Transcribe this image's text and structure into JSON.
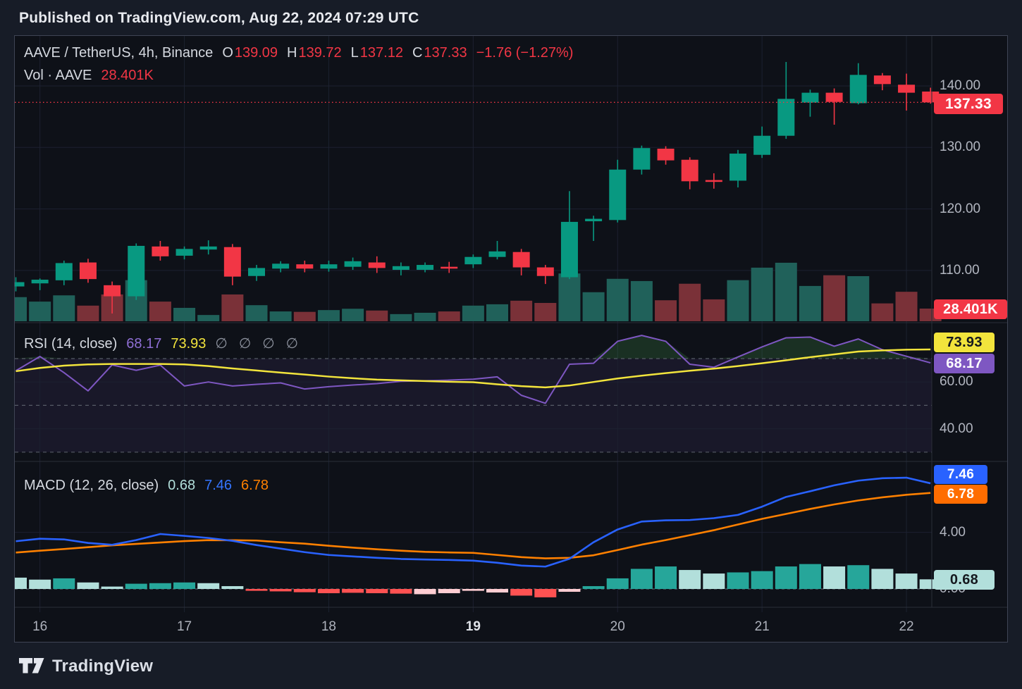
{
  "page": {
    "published": "Published on TradingView.com, Aug 22, 2024 07:29 UTC",
    "brand": "TradingView"
  },
  "main_legend": {
    "title": "AAVE / TetherUS, 4h, Binance",
    "o_label": "O",
    "o": "139.09",
    "h_label": "H",
    "h": "139.72",
    "l_label": "L",
    "l": "137.12",
    "c_label": "C",
    "c": "137.33",
    "change": "−1.76 (−1.27%)",
    "vol_label": "Vol · AAVE",
    "vol_value": "28.401K"
  },
  "rsi_legend": {
    "title": "RSI (14, close)",
    "rsi_value": "68.17",
    "ma_value": "73.93",
    "empty": [
      "∅",
      "∅",
      "∅",
      "∅"
    ]
  },
  "macd_legend": {
    "title": "MACD (12, 26, close)",
    "hist_value": "0.68",
    "macd_value": "7.46",
    "signal_value": "6.78"
  },
  "badges": {
    "price": "137.33",
    "volume": "28.401K",
    "rsi_ma": "73.93",
    "rsi": "68.17",
    "macd": "7.46",
    "signal": "6.78",
    "hist": "0.68"
  },
  "axes": {
    "price_ticks": [
      "140.00",
      "130.00",
      "120.00",
      "110.00"
    ],
    "rsi_ticks": [
      "60.00",
      "40.00"
    ],
    "macd_ticks": [
      "4.00",
      "0.00"
    ],
    "time_labels": [
      {
        "text": "16",
        "bold": false
      },
      {
        "text": "17",
        "bold": false
      },
      {
        "text": "18",
        "bold": false
      },
      {
        "text": "19",
        "bold": true
      },
      {
        "text": "20",
        "bold": false
      },
      {
        "text": "21",
        "bold": false
      },
      {
        "text": "22",
        "bold": false
      }
    ]
  },
  "colors": {
    "up": "#089981",
    "down": "#f23645",
    "vol_up": "#20615a",
    "vol_down": "#7a3138",
    "rsi_line": "#7e57c2",
    "rsi_ma_line": "#f2e43c",
    "rsi_band_fill": "rgba(126,87,194,0.10)",
    "rsi_ob_fill": "rgba(76,175,80,0.20)",
    "macd_line": "#2962ff",
    "signal_line": "#ff8000",
    "hist_teal": "#26a69a",
    "hist_pale": "#b2dfdb",
    "hist_red": "#ff5252",
    "hist_pink": "#ffcdd2",
    "grid": "#1c2130",
    "dashed": "#565b66",
    "divider": "#2a2e39",
    "price_line": "#f23645"
  },
  "chart_data": {
    "type": "candlestick",
    "title": "AAVE / TetherUS, 4h, Binance",
    "timeframe": "4h",
    "x_day_labels": [
      "16",
      "17",
      "18",
      "19",
      "20",
      "21",
      "22"
    ],
    "day_tick_indices": [
      1,
      7,
      13,
      19,
      25,
      31,
      37
    ],
    "price_axis_ticks": [
      140,
      130,
      120,
      110
    ],
    "current_bar": {
      "open": 139.09,
      "high": 139.72,
      "low": 137.12,
      "close": 137.33,
      "change": "−1.76",
      "change_pct": "−1.27%",
      "volume_k": 28.401
    },
    "candles": [
      [
        107.4,
        108.9,
        106.6,
        108.1
      ],
      [
        107.9,
        108.7,
        106.8,
        108.5
      ],
      [
        108.4,
        111.6,
        107.6,
        111.2
      ],
      [
        111.3,
        111.9,
        108.0,
        108.6
      ],
      [
        107.6,
        108.2,
        103.0,
        105.8
      ],
      [
        105.8,
        114.4,
        105.2,
        114.0
      ],
      [
        113.9,
        114.8,
        111.6,
        112.3
      ],
      [
        112.4,
        113.9,
        111.8,
        113.5
      ],
      [
        113.4,
        114.9,
        112.6,
        113.9
      ],
      [
        113.8,
        114.3,
        107.6,
        109.0
      ],
      [
        109.1,
        110.9,
        108.3,
        110.4
      ],
      [
        110.3,
        111.5,
        109.7,
        111.1
      ],
      [
        111.0,
        111.6,
        109.7,
        110.3
      ],
      [
        110.3,
        111.6,
        109.8,
        111.0
      ],
      [
        110.6,
        112.1,
        110.1,
        111.5
      ],
      [
        111.3,
        112.3,
        109.6,
        110.4
      ],
      [
        110.1,
        111.3,
        109.2,
        110.7
      ],
      [
        110.1,
        111.3,
        109.7,
        110.9
      ],
      [
        110.6,
        111.4,
        109.6,
        110.3
      ],
      [
        111.0,
        112.6,
        110.4,
        112.2
      ],
      [
        112.2,
        114.8,
        111.8,
        113.1
      ],
      [
        113.0,
        113.5,
        109.2,
        110.5
      ],
      [
        110.5,
        110.9,
        107.8,
        109.1
      ],
      [
        108.9,
        122.9,
        108.6,
        117.9
      ],
      [
        118.0,
        118.9,
        114.8,
        118.4
      ],
      [
        118.2,
        128.0,
        117.8,
        126.4
      ],
      [
        126.4,
        130.3,
        125.6,
        129.9
      ],
      [
        129.8,
        130.2,
        127.2,
        127.9
      ],
      [
        128.0,
        128.4,
        123.2,
        124.5
      ],
      [
        124.7,
        125.8,
        123.3,
        124.4
      ],
      [
        124.6,
        129.6,
        123.5,
        129.0
      ],
      [
        128.8,
        133.4,
        128.3,
        131.9
      ],
      [
        131.9,
        143.9,
        131.4,
        137.9
      ],
      [
        137.3,
        139.4,
        135.0,
        138.9
      ],
      [
        138.9,
        139.6,
        133.7,
        137.4
      ],
      [
        137.2,
        143.7,
        137.0,
        141.8
      ],
      [
        141.7,
        142.1,
        139.3,
        140.3
      ],
      [
        140.2,
        142.0,
        136.0,
        138.9
      ],
      [
        139.09,
        139.72,
        137.12,
        137.33
      ]
    ],
    "volumes_k": [
      54,
      44,
      58,
      35,
      60,
      92,
      44,
      30,
      14,
      60,
      36,
      22,
      21,
      25,
      28,
      24,
      16,
      19,
      22,
      35,
      38,
      46,
      41,
      107,
      65,
      95,
      90,
      47,
      84,
      49,
      92,
      120,
      131,
      79,
      103,
      101,
      40,
      66,
      28.4
    ],
    "rsi": {
      "period": 14,
      "source": "close",
      "levels": [
        70,
        50,
        30
      ],
      "last": 68.17,
      "ma_last": 73.93,
      "values": [
        64.8,
        70.9,
        64.0,
        56.2,
        67.3,
        65.0,
        67.2,
        58.3,
        60.0,
        58.3,
        59.0,
        59.6,
        57.0,
        58.0,
        58.7,
        59.3,
        60.3,
        60.5,
        60.8,
        61.2,
        62.2,
        54.3,
        50.9,
        67.6,
        68.0,
        77.4,
        79.9,
        77.4,
        67.6,
        66.3,
        70.7,
        75.0,
        78.9,
        79.2,
        75.3,
        78.4,
        73.8,
        71.0,
        68.17
      ],
      "ma_values": [
        64.6,
        66.0,
        67.0,
        67.5,
        67.7,
        67.7,
        67.7,
        67.5,
        66.8,
        65.8,
        64.9,
        64.0,
        63.2,
        62.3,
        61.6,
        61.0,
        60.7,
        60.4,
        60.1,
        59.9,
        59.0,
        58.2,
        57.7,
        58.5,
        60.0,
        61.5,
        62.7,
        63.8,
        64.8,
        65.7,
        66.8,
        68.0,
        69.3,
        70.6,
        71.8,
        73.0,
        73.5,
        73.8,
        73.93
      ]
    },
    "macd": {
      "fast": 12,
      "slow": 26,
      "source": "close",
      "last_macd": 7.46,
      "last_signal": 6.78,
      "last_hist": 0.68,
      "macd_values": [
        3.37,
        3.55,
        3.5,
        3.25,
        3.12,
        3.45,
        3.88,
        3.75,
        3.6,
        3.4,
        3.1,
        2.85,
        2.6,
        2.4,
        2.3,
        2.2,
        2.12,
        2.08,
        2.05,
        2.0,
        1.85,
        1.65,
        1.58,
        2.13,
        3.3,
        4.2,
        4.76,
        4.85,
        4.87,
        5.0,
        5.23,
        5.81,
        6.5,
        6.9,
        7.32,
        7.65,
        7.82,
        7.86,
        7.46
      ],
      "signal_values": [
        2.57,
        2.7,
        2.82,
        2.95,
        3.08,
        3.18,
        3.28,
        3.38,
        3.45,
        3.44,
        3.42,
        3.3,
        3.2,
        3.05,
        2.92,
        2.8,
        2.7,
        2.62,
        2.58,
        2.55,
        2.4,
        2.25,
        2.16,
        2.2,
        2.38,
        2.75,
        3.13,
        3.45,
        3.8,
        4.15,
        4.55,
        4.95,
        5.3,
        5.65,
        5.97,
        6.25,
        6.47,
        6.65,
        6.78
      ],
      "hist_values": [
        0.8,
        0.66,
        0.75,
        0.46,
        0.17,
        0.37,
        0.41,
        0.46,
        0.41,
        0.2,
        -0.13,
        -0.17,
        -0.23,
        -0.3,
        -0.27,
        -0.3,
        -0.33,
        -0.37,
        -0.3,
        -0.13,
        -0.25,
        -0.47,
        -0.59,
        -0.2,
        0.2,
        0.75,
        1.42,
        1.59,
        1.34,
        1.09,
        1.17,
        1.26,
        1.59,
        1.76,
        1.59,
        1.68,
        1.42,
        1.09,
        0.68
      ],
      "hist_colors": [
        "pale",
        "pale",
        "teal",
        "pale",
        "pale",
        "teal",
        "teal",
        "teal",
        "pale",
        "pale",
        "red",
        "red",
        "red",
        "red",
        "red",
        "red",
        "red",
        "pink",
        "pink",
        "pink",
        "pink",
        "red",
        "red",
        "pink",
        "teal",
        "teal",
        "teal",
        "teal",
        "pale",
        "pale",
        "teal",
        "teal",
        "teal",
        "teal",
        "pale",
        "teal",
        "pale",
        "pale",
        "pale"
      ]
    }
  }
}
